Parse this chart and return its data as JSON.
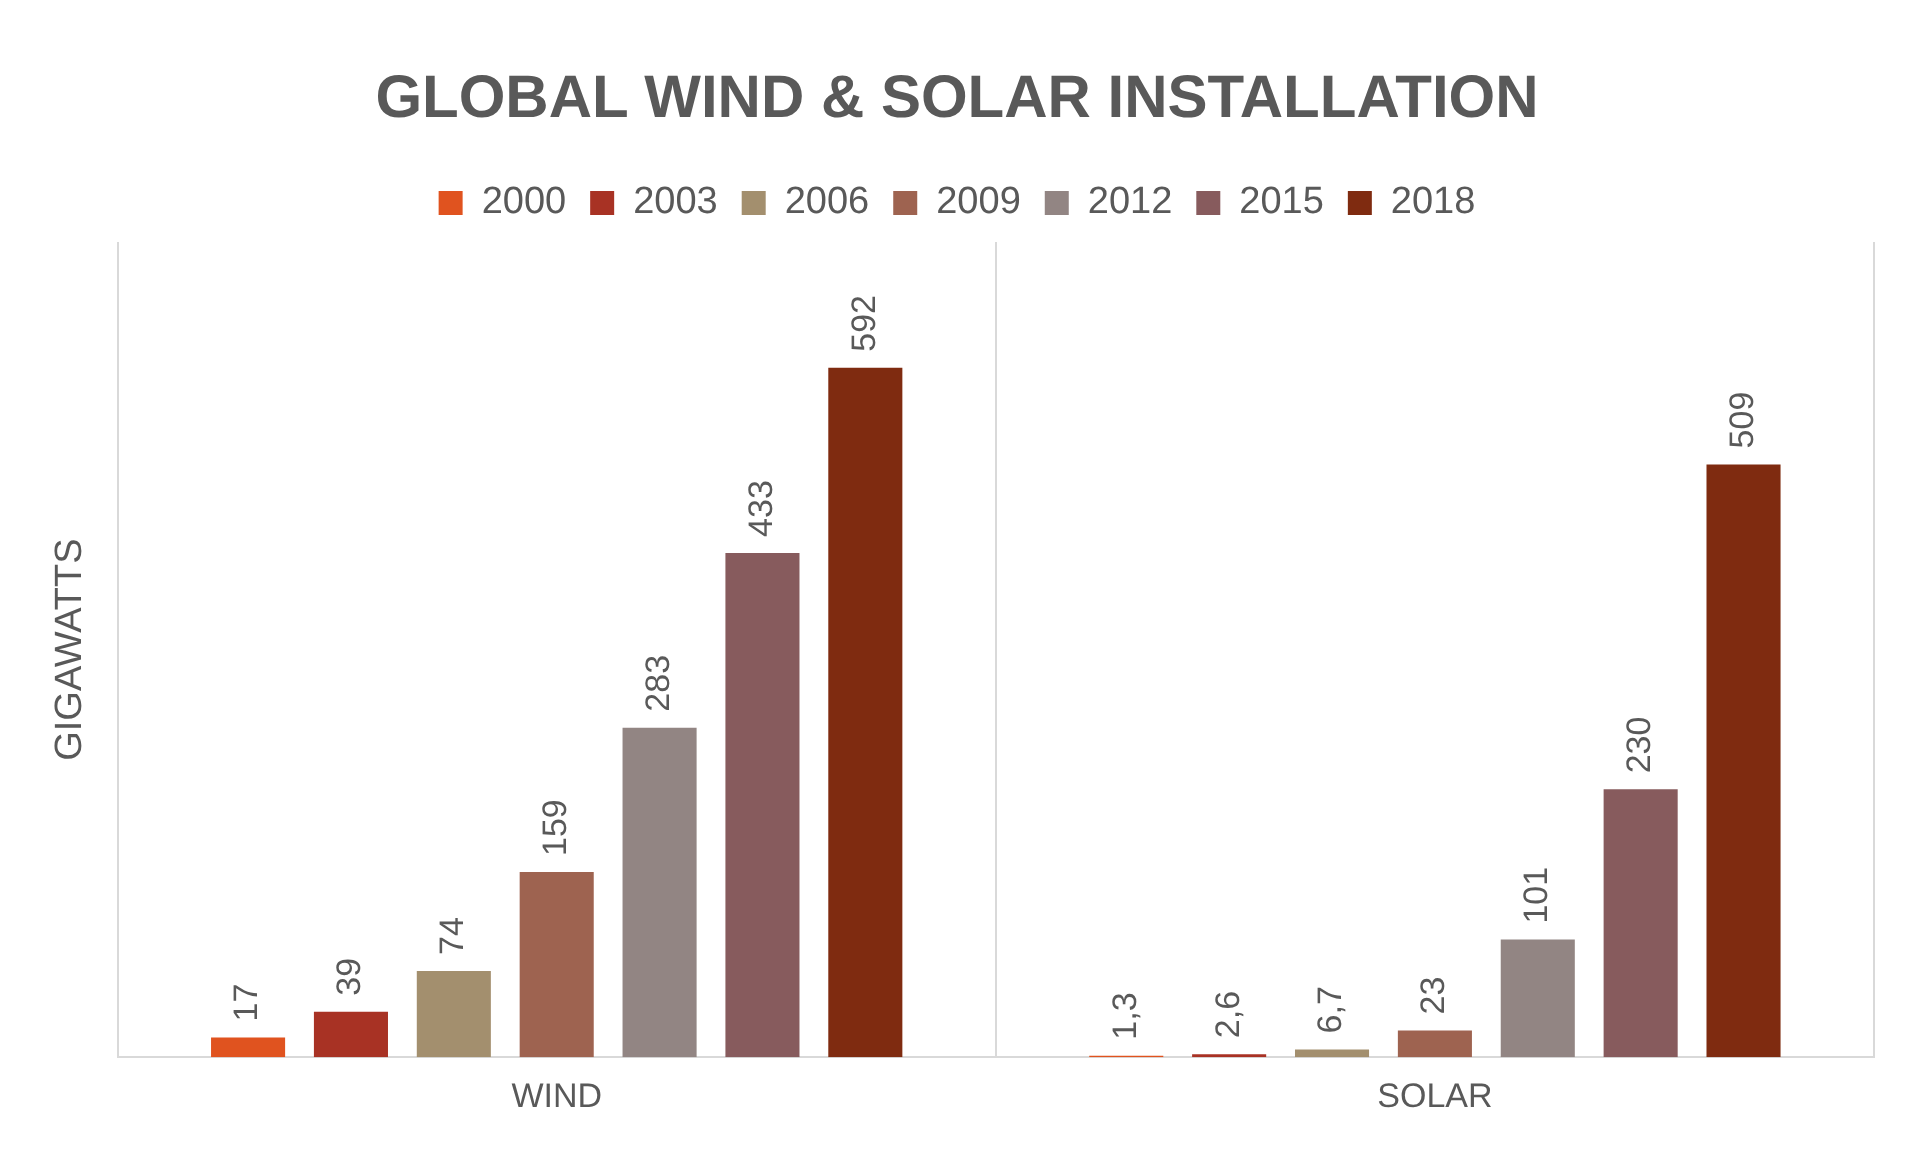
{
  "chart_data": {
    "type": "bar",
    "title": "GLOBAL WIND & SOLAR INSTALLATION",
    "ylabel": "GIGAWATTS",
    "categories": [
      "WIND",
      "SOLAR"
    ],
    "series": [
      {
        "name": "2000",
        "color": "#e0531f",
        "values": [
          17,
          1.3
        ],
        "value_labels": [
          "17",
          "1,3"
        ]
      },
      {
        "name": "2003",
        "color": "#a83224",
        "values": [
          39,
          2.6
        ],
        "value_labels": [
          "39",
          "2,6"
        ]
      },
      {
        "name": "2006",
        "color": "#a38f6e",
        "values": [
          74,
          6.7
        ],
        "value_labels": [
          "74",
          "6,7"
        ]
      },
      {
        "name": "2009",
        "color": "#9e6350",
        "values": [
          159,
          23
        ],
        "value_labels": [
          "159",
          "23"
        ]
      },
      {
        "name": "2012",
        "color": "#928583",
        "values": [
          283,
          101
        ],
        "value_labels": [
          "283",
          "101"
        ]
      },
      {
        "name": "2015",
        "color": "#875b5d",
        "values": [
          433,
          230
        ],
        "value_labels": [
          "433",
          "230"
        ]
      },
      {
        "name": "2018",
        "color": "#7f2b10",
        "values": [
          592,
          509
        ],
        "value_labels": [
          "592",
          "509"
        ]
      }
    ],
    "legend": "top",
    "grid": "x"
  }
}
